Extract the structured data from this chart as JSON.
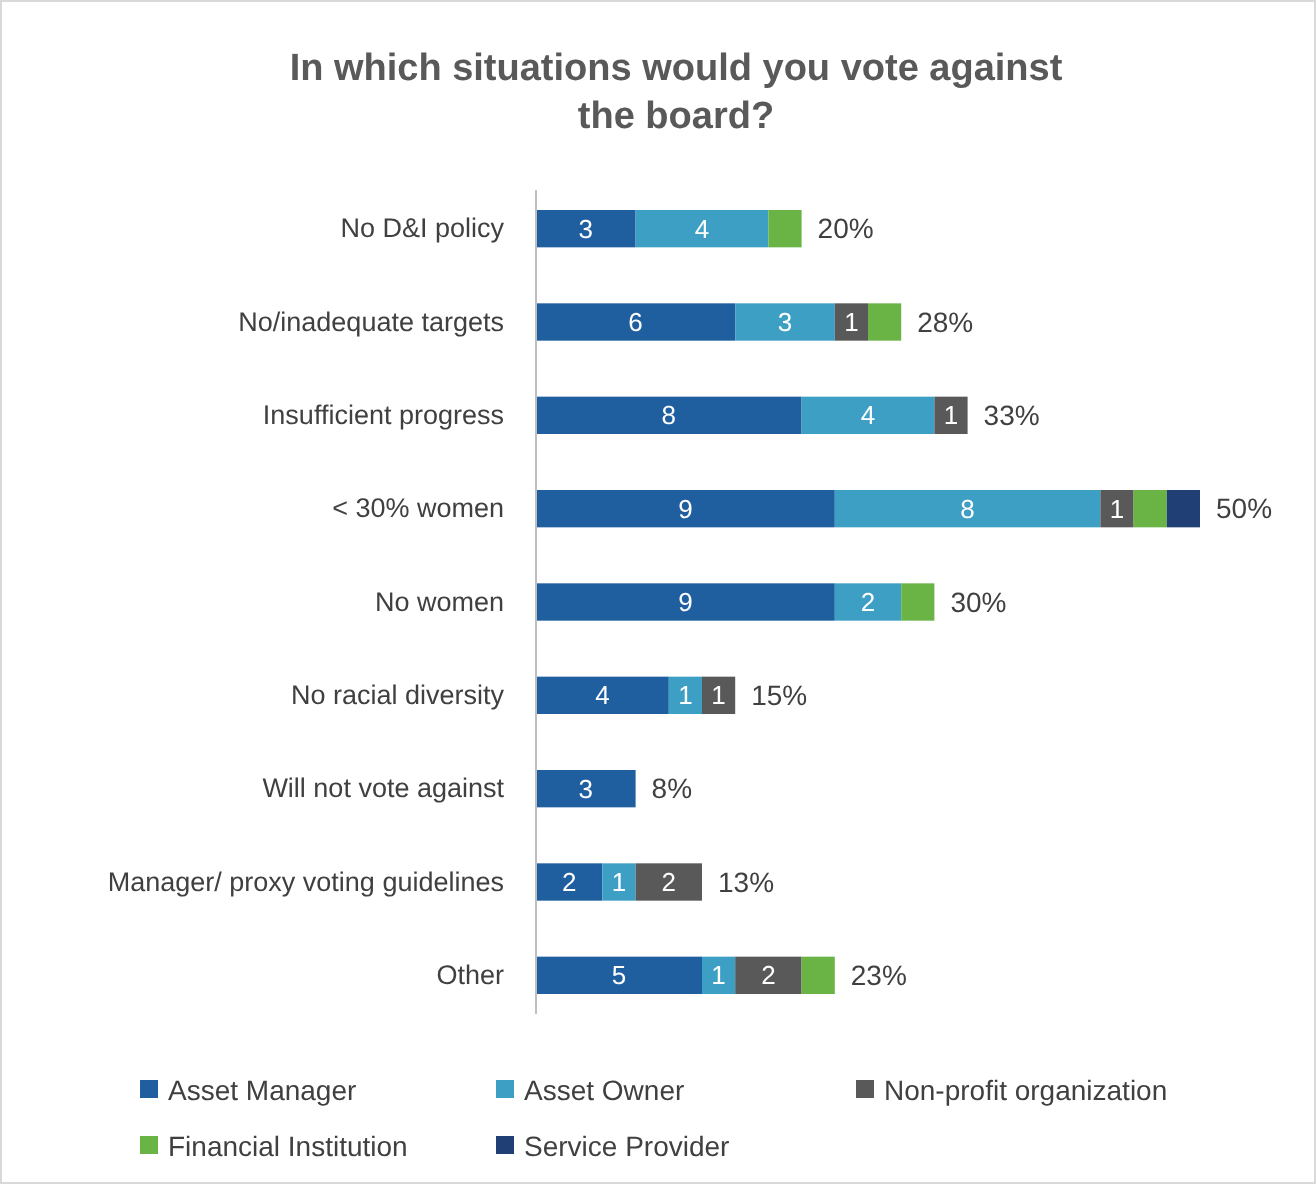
{
  "chart_data": {
    "type": "bar",
    "orientation": "horizontal",
    "stacked": true,
    "title": "In which situations would you vote against the board?",
    "categories": [
      "No D&I policy",
      "No/inadequate targets",
      "Insufficient progress",
      "< 30% women",
      "No women",
      "No racial diversity",
      "Will not vote against",
      "Manager/ proxy voting guidelines",
      "Other"
    ],
    "series": [
      {
        "name": "Asset Manager",
        "color": "#1f5fa0",
        "values": [
          3,
          6,
          8,
          9,
          9,
          4,
          3,
          2,
          5
        ],
        "value_labels": [
          "3",
          "6",
          "8",
          "9",
          "9",
          "4",
          "3",
          "2",
          "5"
        ]
      },
      {
        "name": "Asset Owner",
        "color": "#3e9fc5",
        "values": [
          4,
          3,
          4,
          8,
          2,
          1,
          null,
          1,
          1
        ],
        "value_labels": [
          "4",
          "3",
          "4",
          "8",
          "2",
          "1",
          null,
          "1",
          "1"
        ]
      },
      {
        "name": "Non-profit organization",
        "color": "#595959",
        "values": [
          null,
          1,
          1,
          1,
          null,
          1,
          null,
          2,
          2
        ],
        "value_labels": [
          null,
          "1",
          "1",
          "1",
          null,
          "1",
          null,
          "2",
          "2"
        ]
      },
      {
        "name": "Financial Institution",
        "color": "#6ab446",
        "values": [
          1,
          1,
          null,
          1,
          1,
          null,
          null,
          null,
          1
        ],
        "value_labels": [
          null,
          null,
          null,
          null,
          null,
          null,
          null,
          null,
          null
        ]
      },
      {
        "name": "Service Provider",
        "color": "#203f74",
        "values": [
          null,
          null,
          null,
          1,
          null,
          null,
          null,
          null,
          null
        ],
        "value_labels": [
          null,
          null,
          null,
          null,
          null,
          null,
          null,
          null,
          null
        ]
      }
    ],
    "annotations": [
      {
        "text": "20%",
        "x": 8,
        "y": "No D&I policy"
      },
      {
        "text": "28%",
        "x": 11,
        "y": "No/inadequate targets"
      },
      {
        "text": "33%",
        "x": 13,
        "y": "Insufficient progress"
      },
      {
        "text": "50%",
        "x": 20,
        "y": "< 30% women"
      },
      {
        "text": "30%",
        "x": 12,
        "y": "No women"
      },
      {
        "text": "15%",
        "x": 6,
        "y": "No racial diversity"
      },
      {
        "text": "8%",
        "x": 3,
        "y": "Will not vote against"
      },
      {
        "text": "13%",
        "x": 5,
        "y": "Manager/ proxy voting guidelines"
      },
      {
        "text": "23%",
        "x": 9,
        "y": "Other"
      }
    ],
    "legend": "bottom",
    "grid": false
  }
}
